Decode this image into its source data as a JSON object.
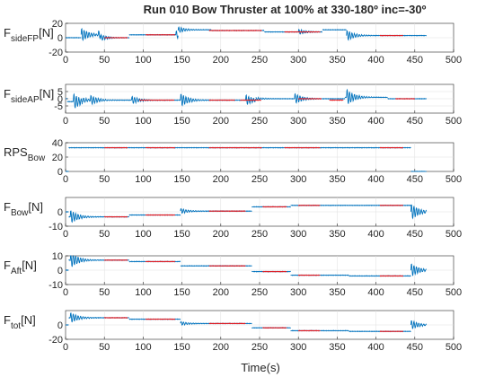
{
  "figure": {
    "title": "Run 010 Bow Thruster at 100% at 330-180º inc=-30º",
    "xlabel": "Time(s)",
    "colors": {
      "blue": "#0072bd",
      "red": "#e8161b",
      "axis": "#262626",
      "grid": "#dfdfdf"
    }
  },
  "chart_data": [
    {
      "type": "line",
      "ylabel": {
        "main": "F",
        "sub": "sideFP",
        "unit": "[N]"
      },
      "xlim": [
        0,
        500
      ],
      "ylim": [
        -20,
        20
      ],
      "xticks": [
        "0",
        "50",
        "100",
        "150",
        "200",
        "250",
        "300",
        "350",
        "400",
        "450",
        "500"
      ],
      "yticks": [
        {
          "v": 20,
          "label": "20"
        },
        {
          "v": 0,
          "label": "0"
        },
        {
          "v": -20,
          "label": "-20"
        }
      ],
      "grid": true,
      "series": [
        {
          "color": "blue",
          "segments": [
            [
              0,
              20,
              0
            ],
            [
              20,
              45,
              4
            ],
            [
              45,
              82,
              0
            ],
            [
              82,
              145,
              4
            ],
            [
              145,
              188,
              11
            ],
            [
              188,
              256,
              10
            ],
            [
              256,
              331,
              8
            ],
            [
              331,
              362,
              11
            ],
            [
              362,
              465,
              3
            ]
          ],
          "osc": [
            [
              20,
              10
            ],
            [
              42,
              5
            ],
            [
              142,
              6
            ],
            [
              300,
              4
            ],
            [
              362,
              8
            ]
          ]
        },
        {
          "color": "red",
          "segments": [
            [
              50,
              80,
              0
            ],
            [
              103,
              141,
              4
            ],
            [
              185,
              253,
              10
            ],
            [
              282,
              328,
              8
            ],
            [
              405,
              435,
              3
            ]
          ]
        }
      ]
    },
    {
      "type": "line",
      "ylabel": {
        "main": "F",
        "sub": "sideAP",
        "unit": "[N]"
      },
      "xlim": [
        0,
        500
      ],
      "ylim": [
        -10,
        10
      ],
      "xticks": [
        "0",
        "50",
        "100",
        "150",
        "200",
        "250",
        "300",
        "350",
        "400",
        "450",
        "500"
      ],
      "yticks": [
        {
          "v": 5,
          "label": "5"
        },
        {
          "v": 0,
          "label": "0"
        },
        {
          "v": -5,
          "label": "-5"
        }
      ],
      "grid": true,
      "series": [
        {
          "color": "blue",
          "segments": [
            [
              0,
              2,
              0
            ],
            [
              2,
              22,
              -2
            ],
            [
              22,
              55,
              -1
            ],
            [
              55,
              85,
              -1
            ],
            [
              85,
              145,
              -1
            ],
            [
              145,
              190,
              -1
            ],
            [
              190,
              245,
              -1
            ],
            [
              245,
              360,
              0
            ],
            [
              360,
              415,
              1
            ],
            [
              415,
              465,
              0
            ]
          ],
          "osc": [
            [
              10,
              6
            ],
            [
              32,
              3
            ],
            [
              85,
              3
            ],
            [
              148,
              5
            ],
            [
              232,
              4
            ],
            [
              295,
              4
            ],
            [
              362,
              6
            ]
          ]
        },
        {
          "color": "red",
          "segments": [
            [
              95,
              140,
              -1
            ],
            [
              185,
              218,
              -1
            ],
            [
              225,
              252,
              -1
            ],
            [
              300,
              330,
              0
            ],
            [
              340,
              358,
              -1
            ],
            [
              425,
              450,
              0
            ]
          ]
        }
      ]
    },
    {
      "type": "line",
      "ylabel": {
        "main": "RPS",
        "sub": "Bow",
        "unit": ""
      },
      "xlim": [
        0,
        500
      ],
      "ylim": [
        0,
        40
      ],
      "xticks": [
        "0",
        "50",
        "100",
        "150",
        "200",
        "250",
        "300",
        "350",
        "400",
        "450",
        "500"
      ],
      "yticks": [
        {
          "v": 40,
          "label": "40"
        },
        {
          "v": 20,
          "label": "20"
        },
        {
          "v": 0,
          "label": "0"
        }
      ],
      "grid": true,
      "series": [
        {
          "color": "blue",
          "segments": [
            [
              0,
              4,
              0
            ],
            [
              4,
              445,
              33
            ],
            [
              445,
              465,
              0
            ]
          ],
          "osc": []
        },
        {
          "color": "red",
          "segments": [
            [
              50,
              80,
              33
            ],
            [
              103,
              141,
              33
            ],
            [
              185,
              253,
              33
            ],
            [
              282,
              328,
              33
            ],
            [
              405,
              435,
              33
            ]
          ]
        }
      ]
    },
    {
      "type": "line",
      "ylabel": {
        "main": "F",
        "sub": "Bow",
        "unit": "[N]"
      },
      "xlim": [
        0,
        500
      ],
      "ylim": [
        -10,
        10
      ],
      "xticks": [
        "0",
        "50",
        "100",
        "150",
        "200",
        "250",
        "300",
        "350",
        "400",
        "450",
        "500"
      ],
      "yticks": [
        {
          "v": 0,
          "label": "0"
        },
        {
          "v": -10,
          "label": "-10"
        }
      ],
      "grid": true,
      "series": [
        {
          "color": "blue",
          "segments": [
            [
              0,
              4,
              0
            ],
            [
              4,
              82,
              -3.5
            ],
            [
              82,
              148,
              -2.2
            ],
            [
              148,
              240,
              0.5
            ],
            [
              240,
              290,
              3.5
            ],
            [
              290,
              365,
              4.5
            ],
            [
              365,
              445,
              4.5
            ],
            [
              445,
              465,
              0
            ]
          ],
          "osc": [
            [
              6,
              5
            ],
            [
              148,
              2
            ],
            [
              445,
              6
            ]
          ]
        },
        {
          "color": "red",
          "segments": [
            [
              50,
              80,
              -3.5
            ],
            [
              103,
              141,
              -2.2
            ],
            [
              185,
              232,
              0.5
            ],
            [
              254,
              285,
              3.5
            ],
            [
              300,
              328,
              4.5
            ],
            [
              405,
              435,
              4.5
            ]
          ]
        }
      ]
    },
    {
      "type": "line",
      "ylabel": {
        "main": "F",
        "sub": "Aft",
        "unit": "[N]"
      },
      "xlim": [
        0,
        500
      ],
      "ylim": [
        -10,
        10
      ],
      "xticks": [
        "0",
        "50",
        "100",
        "150",
        "200",
        "250",
        "300",
        "350",
        "400",
        "450",
        "500"
      ],
      "yticks": [
        {
          "v": 10,
          "label": "10"
        },
        {
          "v": 0,
          "label": "0"
        },
        {
          "v": -10,
          "label": "-10"
        }
      ],
      "grid": true,
      "series": [
        {
          "color": "blue",
          "segments": [
            [
              0,
              4,
              0
            ],
            [
              4,
              82,
              7
            ],
            [
              82,
              148,
              6
            ],
            [
              148,
              240,
              3
            ],
            [
              240,
              290,
              -1
            ],
            [
              290,
              365,
              -3.5
            ],
            [
              365,
              445,
              -4
            ],
            [
              445,
              465,
              0
            ]
          ],
          "osc": [
            [
              6,
              6
            ],
            [
              445,
              5
            ]
          ]
        },
        {
          "color": "red",
          "segments": [
            [
              50,
              80,
              7
            ],
            [
              103,
              141,
              6
            ],
            [
              185,
              232,
              3
            ],
            [
              254,
              285,
              -1
            ],
            [
              300,
              328,
              -3.5
            ],
            [
              405,
              435,
              -4
            ]
          ]
        }
      ]
    },
    {
      "type": "line",
      "ylabel": {
        "main": "F",
        "sub": "tot",
        "unit": "[N]"
      },
      "xlim": [
        0,
        500
      ],
      "ylim": [
        -20,
        20
      ],
      "xticks": [
        "0",
        "50",
        "100",
        "150",
        "200",
        "250",
        "300",
        "350",
        "400",
        "450",
        "500"
      ],
      "yticks": [
        {
          "v": 0,
          "label": "0"
        },
        {
          "v": -20,
          "label": "-20"
        }
      ],
      "grid": true,
      "series": [
        {
          "color": "blue",
          "segments": [
            [
              0,
              4,
              0
            ],
            [
              4,
              82,
              10
            ],
            [
              82,
              148,
              8
            ],
            [
              148,
              240,
              2
            ],
            [
              240,
              290,
              -4
            ],
            [
              290,
              365,
              -8
            ],
            [
              365,
              445,
              -9
            ],
            [
              445,
              465,
              0
            ]
          ],
          "osc": [
            [
              6,
              8
            ],
            [
              148,
              3
            ],
            [
              445,
              7
            ]
          ]
        },
        {
          "color": "red",
          "segments": [
            [
              50,
              80,
              10
            ],
            [
              103,
              141,
              8
            ],
            [
              185,
              232,
              2
            ],
            [
              254,
              285,
              -4
            ],
            [
              300,
              328,
              -8
            ],
            [
              405,
              435,
              -9
            ]
          ]
        }
      ]
    }
  ]
}
